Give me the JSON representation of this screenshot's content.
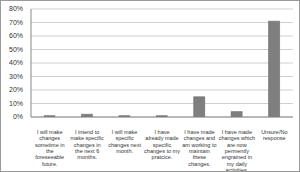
{
  "chart_data": {
    "type": "bar",
    "categories": [
      "I will make changes sometime in the foreseeable future.",
      "I intend to make specific changes in the next 6 months.",
      "I will make specific changes next month.",
      "I have already made specific changes to my pratcice.",
      "I have made changes and am working to maintain these changes.",
      "I have made changes which are now permently engrained in my daily activities.",
      "Unsure/No response"
    ],
    "values": [
      1,
      2,
      1,
      1,
      15,
      4,
      71
    ],
    "color": "#7f7f7f",
    "ylim": [
      0,
      80
    ],
    "yticks": [
      {
        "value": 0,
        "label": "0%"
      },
      {
        "value": 10,
        "label": "10%"
      },
      {
        "value": 20,
        "label": "20%"
      },
      {
        "value": 30,
        "label": "30%"
      },
      {
        "value": 40,
        "label": "40%"
      },
      {
        "value": 50,
        "label": "50%"
      },
      {
        "value": 60,
        "label": "60%"
      },
      {
        "value": 70,
        "label": "70%"
      },
      {
        "value": 80,
        "label": "80%"
      }
    ],
    "grid": true
  }
}
